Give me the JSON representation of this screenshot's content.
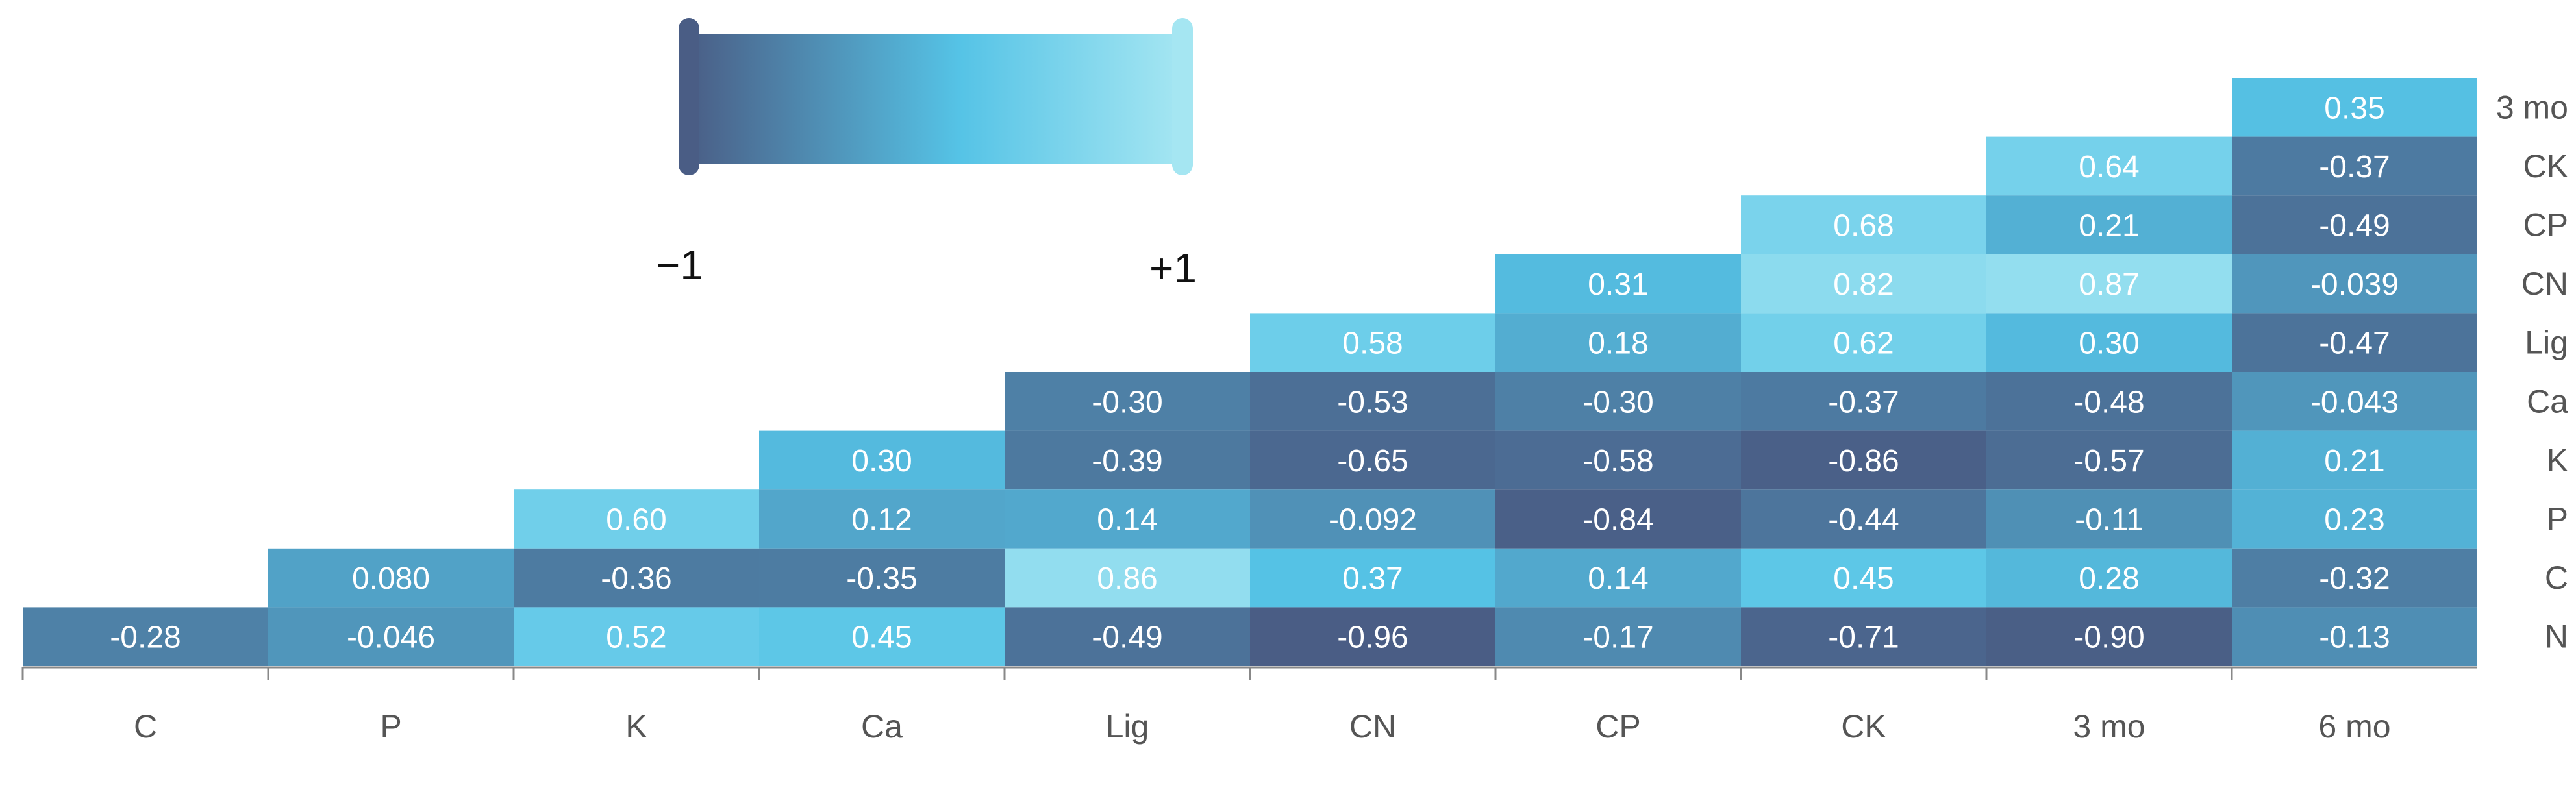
{
  "chart_data": {
    "type": "heatmap",
    "title": "",
    "xlabel": "",
    "ylabel": "",
    "x_categories": [
      "C",
      "P",
      "K",
      "Ca",
      "Lig",
      "CN",
      "CP",
      "CK",
      "3 mo",
      "6 mo"
    ],
    "y_categories": [
      "3 mo",
      "CK",
      "CP",
      "CN",
      "Lig",
      "Ca",
      "K",
      "P",
      "C",
      "N"
    ],
    "value_range": [
      -1,
      1
    ],
    "colorbar": {
      "min_label": "−1",
      "max_label": "+1",
      "colors": [
        "#4a5d85",
        "#55c3e6",
        "#a5e6f2"
      ]
    },
    "cells": [
      {
        "x": "6 mo",
        "y": "3 mo",
        "value": 0.35,
        "label": "0.35"
      },
      {
        "x": "3 mo",
        "y": "CK",
        "value": 0.64,
        "label": "0.64"
      },
      {
        "x": "6 mo",
        "y": "CK",
        "value": -0.37,
        "label": "-0.37"
      },
      {
        "x": "CK",
        "y": "CP",
        "value": 0.68,
        "label": "0.68"
      },
      {
        "x": "3 mo",
        "y": "CP",
        "value": 0.21,
        "label": "0.21"
      },
      {
        "x": "6 mo",
        "y": "CP",
        "value": -0.49,
        "label": "-0.49"
      },
      {
        "x": "CP",
        "y": "CN",
        "value": 0.31,
        "label": "0.31"
      },
      {
        "x": "CK",
        "y": "CN",
        "value": 0.82,
        "label": "0.82"
      },
      {
        "x": "3 mo",
        "y": "CN",
        "value": 0.87,
        "label": "0.87"
      },
      {
        "x": "6 mo",
        "y": "CN",
        "value": -0.039,
        "label": "-0.039"
      },
      {
        "x": "CN",
        "y": "Lig",
        "value": 0.58,
        "label": "0.58"
      },
      {
        "x": "CP",
        "y": "Lig",
        "value": 0.18,
        "label": "0.18"
      },
      {
        "x": "CK",
        "y": "Lig",
        "value": 0.62,
        "label": "0.62"
      },
      {
        "x": "3 mo",
        "y": "Lig",
        "value": 0.3,
        "label": "0.30"
      },
      {
        "x": "6 mo",
        "y": "Lig",
        "value": -0.47,
        "label": "-0.47"
      },
      {
        "x": "Lig",
        "y": "Ca",
        "value": -0.3,
        "label": "-0.30"
      },
      {
        "x": "CN",
        "y": "Ca",
        "value": -0.53,
        "label": "-0.53"
      },
      {
        "x": "CP",
        "y": "Ca",
        "value": -0.3,
        "label": "-0.30"
      },
      {
        "x": "CK",
        "y": "Ca",
        "value": -0.37,
        "label": "-0.37"
      },
      {
        "x": "3 mo",
        "y": "Ca",
        "value": -0.48,
        "label": "-0.48"
      },
      {
        "x": "6 mo",
        "y": "Ca",
        "value": -0.043,
        "label": "-0.043"
      },
      {
        "x": "Ca",
        "y": "K",
        "value": 0.3,
        "label": "0.30"
      },
      {
        "x": "Lig",
        "y": "K",
        "value": -0.39,
        "label": "-0.39"
      },
      {
        "x": "CN",
        "y": "K",
        "value": -0.65,
        "label": "-0.65"
      },
      {
        "x": "CP",
        "y": "K",
        "value": -0.58,
        "label": "-0.58"
      },
      {
        "x": "CK",
        "y": "K",
        "value": -0.86,
        "label": "-0.86"
      },
      {
        "x": "3 mo",
        "y": "K",
        "value": -0.57,
        "label": "-0.57"
      },
      {
        "x": "6 mo",
        "y": "K",
        "value": 0.21,
        "label": "0.21"
      },
      {
        "x": "K",
        "y": "P",
        "value": 0.6,
        "label": "0.60"
      },
      {
        "x": "Ca",
        "y": "P",
        "value": 0.12,
        "label": "0.12"
      },
      {
        "x": "Lig",
        "y": "P",
        "value": 0.14,
        "label": "0.14"
      },
      {
        "x": "CN",
        "y": "P",
        "value": -0.092,
        "label": "-0.092"
      },
      {
        "x": "CP",
        "y": "P",
        "value": -0.84,
        "label": "-0.84"
      },
      {
        "x": "CK",
        "y": "P",
        "value": -0.44,
        "label": "-0.44"
      },
      {
        "x": "3 mo",
        "y": "P",
        "value": -0.11,
        "label": "-0.11"
      },
      {
        "x": "6 mo",
        "y": "P",
        "value": 0.23,
        "label": "0.23"
      },
      {
        "x": "P",
        "y": "C",
        "value": 0.08,
        "label": "0.080"
      },
      {
        "x": "K",
        "y": "C",
        "value": -0.36,
        "label": "-0.36"
      },
      {
        "x": "Ca",
        "y": "C",
        "value": -0.35,
        "label": "-0.35"
      },
      {
        "x": "Lig",
        "y": "C",
        "value": 0.86,
        "label": "0.86"
      },
      {
        "x": "CN",
        "y": "C",
        "value": 0.37,
        "label": "0.37"
      },
      {
        "x": "CP",
        "y": "C",
        "value": 0.14,
        "label": "0.14"
      },
      {
        "x": "CK",
        "y": "C",
        "value": 0.45,
        "label": "0.45"
      },
      {
        "x": "3 mo",
        "y": "C",
        "value": 0.28,
        "label": "0.28"
      },
      {
        "x": "6 mo",
        "y": "C",
        "value": -0.32,
        "label": "-0.32"
      },
      {
        "x": "C",
        "y": "N",
        "value": -0.28,
        "label": "-0.28"
      },
      {
        "x": "P",
        "y": "N",
        "value": -0.046,
        "label": "-0.046"
      },
      {
        "x": "K",
        "y": "N",
        "value": 0.52,
        "label": "0.52"
      },
      {
        "x": "Ca",
        "y": "N",
        "value": 0.45,
        "label": "0.45"
      },
      {
        "x": "Lig",
        "y": "N",
        "value": -0.49,
        "label": "-0.49"
      },
      {
        "x": "CN",
        "y": "N",
        "value": -0.96,
        "label": "-0.96"
      },
      {
        "x": "CP",
        "y": "N",
        "value": -0.17,
        "label": "-0.17"
      },
      {
        "x": "CK",
        "y": "N",
        "value": -0.71,
        "label": "-0.71"
      },
      {
        "x": "3 mo",
        "y": "N",
        "value": -0.9,
        "label": "-0.90"
      },
      {
        "x": "6 mo",
        "y": "N",
        "value": -0.13,
        "label": "-0.13"
      }
    ]
  }
}
